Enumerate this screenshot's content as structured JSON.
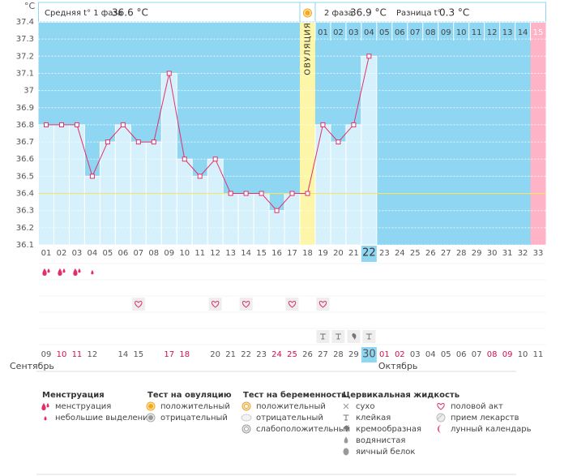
{
  "header": {
    "unit": "°C",
    "phase1_label": "Средняя t° 1 фаза",
    "phase1_avg": "36.6 °C",
    "phase2_label": "2 фаза",
    "phase2_avg": "36.9 °C",
    "diff_label": "Разница t°",
    "diff": "0.3 °C"
  },
  "chart_data": {
    "type": "line",
    "categories": [
      "01",
      "02",
      "03",
      "04",
      "05",
      "06",
      "07",
      "08",
      "09",
      "10",
      "11",
      "12",
      "13",
      "14",
      "15",
      "16",
      "17",
      "18",
      "19",
      "20",
      "21",
      "22",
      "23",
      "24",
      "25",
      "26",
      "27",
      "28",
      "29",
      "30",
      "31",
      "32",
      "33"
    ],
    "values": [
      36.8,
      36.8,
      36.8,
      36.5,
      36.7,
      36.8,
      36.7,
      36.7,
      37.1,
      36.6,
      36.5,
      36.6,
      36.4,
      36.4,
      36.4,
      36.3,
      36.4,
      36.4,
      36.8,
      36.7,
      36.8,
      37.2,
      null,
      null,
      null,
      null,
      null,
      null,
      null,
      null,
      null,
      null,
      null
    ],
    "ylim": [
      36.1,
      37.4
    ],
    "yticks": [
      36.1,
      36.2,
      36.3,
      36.4,
      36.5,
      36.6,
      36.7,
      36.8,
      36.9,
      37,
      37.1,
      37.2,
      37.3,
      37.4
    ],
    "grid": true,
    "color": "#e0306a",
    "bar_color": "#d6f1fc",
    "background_color": "#8fd6f2",
    "coverline": 36.4,
    "coverline_color": "#f2e56a",
    "ovulation_day": "18",
    "ovulation_label": "ОВУЛЯЦИЯ",
    "ovulation_color": "#fdf5a8",
    "phase2_days": [
      "01",
      "02",
      "03",
      "04",
      "05",
      "06",
      "07",
      "08",
      "09",
      "10",
      "11",
      "12",
      "13",
      "14",
      "15"
    ],
    "period_day": "15",
    "period_color": "#ffb3c6",
    "today": "22",
    "today_color": "#8fd6f2",
    "dates": [
      "09",
      "10",
      "11",
      "12",
      null,
      "14",
      "15",
      null,
      "17",
      "18",
      null,
      "20",
      "21",
      "22",
      "23",
      "24",
      "25",
      "26",
      "27",
      "28",
      "29",
      "30",
      "01",
      "02",
      "03",
      "04",
      "05",
      "06",
      "07",
      "08",
      "09",
      "10",
      "11"
    ],
    "date_colors": [
      "#555",
      "#d0104c",
      "#d0104c",
      "#555",
      "#555",
      "#555",
      "#555",
      "#555",
      "#d0104c",
      "#d0104c",
      "#555",
      "#555",
      "#555",
      "#555",
      "#555",
      "#d0104c",
      "#d0104c",
      "#555",
      "#555",
      "#555",
      "#555",
      "#555",
      "#d0104c",
      "#d0104c",
      "#555",
      "#555",
      "#555",
      "#555",
      "#555",
      "#d0104c",
      "#d0104c",
      "#555",
      "#555"
    ],
    "months": [
      {
        "label": "Сентябрь",
        "start": "09"
      },
      {
        "label": "Октябрь",
        "start": "01"
      }
    ],
    "markers": [
      {
        "kind": "menstruation",
        "day": "01",
        "icon": "drop"
      },
      {
        "kind": "menstruation",
        "day": "02",
        "icon": "drop"
      },
      {
        "kind": "menstruation",
        "day": "03",
        "icon": "drop"
      },
      {
        "kind": "menstruation",
        "day": "04",
        "icon": "drop-small"
      },
      {
        "kind": "sex",
        "day": "07",
        "icon": "heart"
      },
      {
        "kind": "sex",
        "day": "12",
        "icon": "heart"
      },
      {
        "kind": "sex",
        "day": "14",
        "icon": "heart"
      },
      {
        "kind": "sex",
        "day": "17",
        "icon": "heart"
      },
      {
        "kind": "sex",
        "day": "19",
        "icon": "heart"
      },
      {
        "kind": "fluid",
        "day": "19",
        "icon": "sticky"
      },
      {
        "kind": "fluid",
        "day": "20",
        "icon": "sticky"
      },
      {
        "kind": "fluid",
        "day": "21",
        "icon": "creamy"
      },
      {
        "kind": "fluid",
        "day": "22",
        "icon": "sticky"
      }
    ]
  },
  "legend": [
    {
      "title": "Менструация",
      "items": [
        {
          "label": "менструация",
          "icon": "drop"
        },
        {
          "label": "небольшие выделения",
          "icon": "drop-small"
        }
      ]
    },
    {
      "title": "Тест на овуляцию",
      "items": [
        {
          "label": "положительный",
          "icon": "sun"
        },
        {
          "label": "отрицательный",
          "icon": "circle-gray"
        }
      ]
    },
    {
      "title": "Тест на беременность",
      "items": [
        {
          "label": "положительный",
          "icon": "preg-pos"
        },
        {
          "label": "отрицательный",
          "icon": "preg-neg"
        },
        {
          "label": "слабоположительный",
          "icon": "preg-weak"
        }
      ]
    },
    {
      "title": "Цервикальная жидкость",
      "items": [
        {
          "label": "сухо",
          "icon": "x"
        },
        {
          "label": "клейкая",
          "icon": "sticky"
        },
        {
          "label": "кремообразная",
          "icon": "creamy"
        },
        {
          "label": "водянистая",
          "icon": "drop-gray"
        },
        {
          "label": "яичный белок",
          "icon": "egg"
        }
      ]
    },
    {
      "items": [
        {
          "label": "половой акт",
          "icon": "heart"
        },
        {
          "label": "прием лекарств",
          "icon": "pill"
        },
        {
          "label": "лунный календарь",
          "icon": "moon"
        }
      ]
    }
  ]
}
